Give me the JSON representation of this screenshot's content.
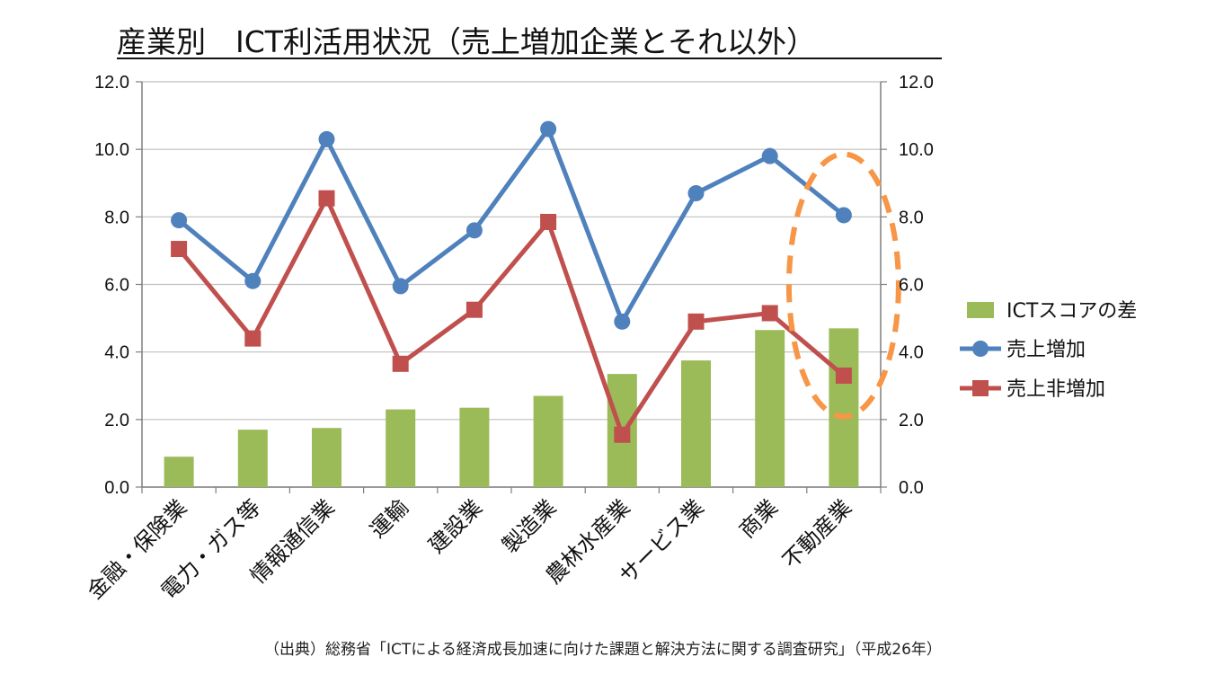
{
  "title": "産業別　ICT利活用状況（売上増加企業とそれ以外）",
  "source": "（出典）総務省「ICTによる経済成長加速に向けた課題と解決方法に関する調査研究」（平成26年）",
  "colors": {
    "bar": "#9BBB59",
    "increase": "#4F81BD",
    "non_increase": "#C0504D",
    "highlight": "#F79646",
    "axis": "#7f7f7f"
  },
  "chart_data": {
    "type": "bar",
    "categories": [
      "金融・保険業",
      "電力・ガス等",
      "情報通信業",
      "運輸",
      "建設業",
      "製造業",
      "農林水産業",
      "サービス業",
      "商業",
      "不動産業"
    ],
    "ylim": [
      0,
      12
    ],
    "yticks": [
      "0.0",
      "2.0",
      "4.0",
      "6.0",
      "8.0",
      "10.0",
      "12.0"
    ],
    "series": [
      {
        "name": "ICTスコアの差",
        "kind": "bar",
        "values": [
          0.9,
          1.7,
          1.75,
          2.3,
          2.35,
          2.7,
          3.35,
          3.75,
          4.65,
          4.7
        ]
      },
      {
        "name": "売上増加",
        "kind": "line",
        "values": [
          7.9,
          6.1,
          10.3,
          5.95,
          7.6,
          10.6,
          4.9,
          8.7,
          9.8,
          8.05
        ]
      },
      {
        "name": "売上非増加",
        "kind": "line",
        "values": [
          7.05,
          4.4,
          8.55,
          3.65,
          5.25,
          7.85,
          1.55,
          4.9,
          5.15,
          3.3
        ]
      }
    ],
    "highlight_category": "不動産業",
    "legend_position": "right"
  }
}
